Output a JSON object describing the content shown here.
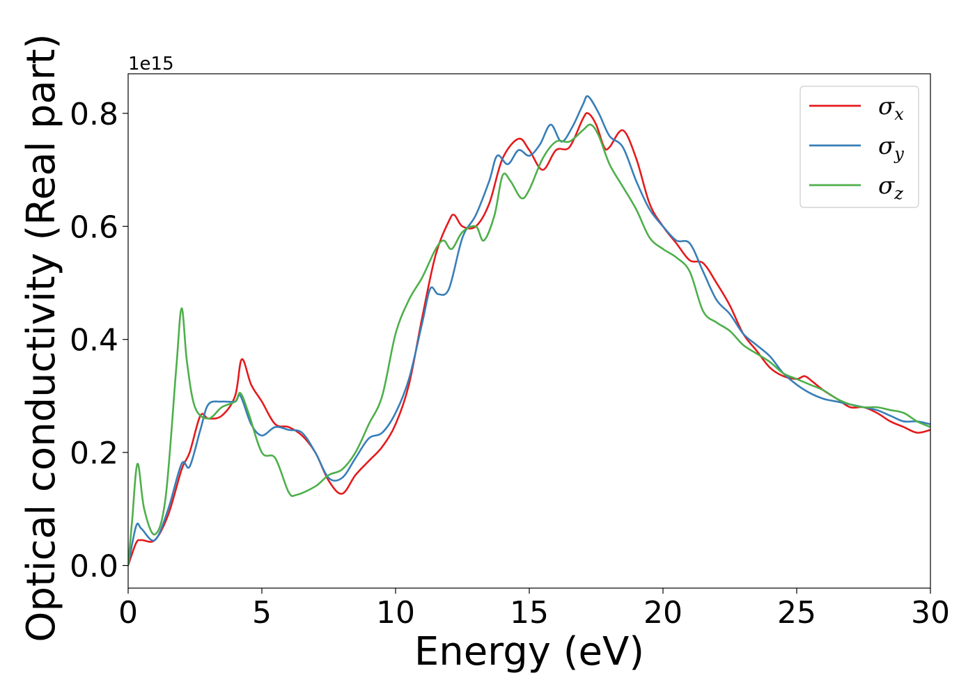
{
  "chart_data": {
    "type": "line",
    "title": "",
    "xlabel": "Energy (eV)",
    "ylabel": "Optical conductivity (Real part)",
    "y_offset_label": "1e15",
    "xlim": [
      0,
      30
    ],
    "ylim": [
      -0.04,
      0.87
    ],
    "xticks": [
      0,
      5,
      10,
      15,
      20,
      25,
      30
    ],
    "xtick_labels": [
      "0",
      "5",
      "10",
      "15",
      "20",
      "25",
      "30"
    ],
    "yticks": [
      0.0,
      0.2,
      0.4,
      0.6,
      0.8
    ],
    "ytick_labels": [
      "0.0",
      "0.2",
      "0.4",
      "0.6",
      "0.8"
    ],
    "grid": false,
    "legend_position": "top-right",
    "legend": [
      {
        "symbol": "σ",
        "subscript": "x",
        "color": "#e41a1c"
      },
      {
        "symbol": "σ",
        "subscript": "y",
        "color": "#377eb8"
      },
      {
        "symbol": "σ",
        "subscript": "z",
        "color": "#4daf4a"
      }
    ],
    "series": [
      {
        "name": "σx",
        "color": "#e41a1c",
        "x": [
          0,
          0.3,
          0.5,
          1,
          1.5,
          2,
          2.3,
          2.7,
          3,
          3.5,
          4,
          4.25,
          4.6,
          5,
          5.5,
          6,
          6.5,
          7,
          7.5,
          8,
          8.5,
          9,
          9.5,
          10,
          10.5,
          11,
          11.5,
          12,
          12.2,
          12.5,
          13,
          13.5,
          14,
          14.6,
          15,
          15.5,
          16,
          16.5,
          17,
          17.2,
          17.5,
          17.8,
          18,
          18.5,
          19,
          19.5,
          20,
          20.5,
          21,
          21.5,
          22,
          22.5,
          23,
          23.5,
          24,
          24.5,
          25,
          25.3,
          25.6,
          26,
          26.5,
          27,
          27.5,
          28,
          28.5,
          29,
          29.5,
          30
        ],
        "y": [
          0,
          0.04,
          0.045,
          0.045,
          0.09,
          0.17,
          0.2,
          0.265,
          0.26,
          0.265,
          0.3,
          0.365,
          0.32,
          0.29,
          0.25,
          0.245,
          0.23,
          0.2,
          0.15,
          0.127,
          0.16,
          0.185,
          0.21,
          0.25,
          0.32,
          0.44,
          0.55,
          0.61,
          0.62,
          0.6,
          0.6,
          0.64,
          0.72,
          0.755,
          0.735,
          0.7,
          0.735,
          0.74,
          0.79,
          0.8,
          0.78,
          0.74,
          0.74,
          0.77,
          0.72,
          0.64,
          0.6,
          0.57,
          0.54,
          0.535,
          0.5,
          0.46,
          0.41,
          0.38,
          0.35,
          0.335,
          0.33,
          0.335,
          0.325,
          0.31,
          0.295,
          0.28,
          0.28,
          0.27,
          0.255,
          0.245,
          0.235,
          0.24
        ]
      },
      {
        "name": "σy",
        "color": "#377eb8",
        "x": [
          0,
          0.3,
          0.5,
          1,
          1.5,
          2,
          2.3,
          2.7,
          3,
          3.5,
          4,
          4.2,
          4.6,
          5,
          5.5,
          6,
          6.5,
          7,
          7.5,
          8,
          8.5,
          9,
          9.5,
          10,
          10.5,
          11,
          11.3,
          11.6,
          12,
          12.5,
          13,
          13.5,
          13.8,
          14.2,
          14.6,
          15,
          15.4,
          15.8,
          16.2,
          16.6,
          17,
          17.2,
          17.6,
          18,
          18.5,
          19,
          19.5,
          20,
          20.5,
          21,
          21.5,
          22,
          22.5,
          23,
          23.5,
          24,
          24.5,
          25,
          25.5,
          26,
          26.5,
          27,
          27.5,
          28,
          28.5,
          29,
          29.5,
          30
        ],
        "y": [
          0,
          0.07,
          0.065,
          0.045,
          0.1,
          0.18,
          0.175,
          0.24,
          0.285,
          0.29,
          0.29,
          0.3,
          0.25,
          0.23,
          0.245,
          0.24,
          0.235,
          0.2,
          0.155,
          0.155,
          0.19,
          0.225,
          0.235,
          0.27,
          0.33,
          0.43,
          0.49,
          0.48,
          0.49,
          0.58,
          0.62,
          0.68,
          0.725,
          0.71,
          0.735,
          0.725,
          0.745,
          0.78,
          0.75,
          0.775,
          0.815,
          0.83,
          0.8,
          0.76,
          0.74,
          0.68,
          0.63,
          0.6,
          0.575,
          0.57,
          0.52,
          0.47,
          0.445,
          0.41,
          0.39,
          0.37,
          0.34,
          0.32,
          0.305,
          0.295,
          0.29,
          0.285,
          0.28,
          0.275,
          0.265,
          0.255,
          0.255,
          0.25
        ]
      },
      {
        "name": "σz",
        "color": "#4daf4a",
        "x": [
          0,
          0.15,
          0.35,
          0.6,
          1,
          1.4,
          1.8,
          2,
          2.2,
          2.5,
          3,
          3.5,
          4,
          4.2,
          4.5,
          5,
          5.5,
          6,
          6.3,
          7,
          7.5,
          8,
          8.5,
          9,
          9.5,
          10,
          10.5,
          11,
          11.5,
          11.8,
          12.1,
          12.5,
          13,
          13.3,
          13.7,
          14,
          14.3,
          14.7,
          15,
          15.5,
          16,
          16.5,
          17,
          17.3,
          17.6,
          18,
          18.5,
          19,
          19.5,
          20,
          20.5,
          21,
          21.5,
          22,
          22.5,
          23,
          23.5,
          24,
          24.5,
          25,
          25.5,
          26,
          26.5,
          27,
          27.5,
          28,
          28.5,
          29,
          29.5,
          30
        ],
        "y": [
          0,
          0.08,
          0.18,
          0.1,
          0.055,
          0.12,
          0.35,
          0.455,
          0.36,
          0.28,
          0.26,
          0.28,
          0.29,
          0.305,
          0.27,
          0.2,
          0.19,
          0.13,
          0.125,
          0.14,
          0.16,
          0.17,
          0.2,
          0.25,
          0.3,
          0.41,
          0.47,
          0.51,
          0.56,
          0.575,
          0.56,
          0.59,
          0.6,
          0.575,
          0.62,
          0.69,
          0.68,
          0.65,
          0.665,
          0.72,
          0.75,
          0.75,
          0.77,
          0.78,
          0.76,
          0.71,
          0.67,
          0.63,
          0.58,
          0.56,
          0.545,
          0.52,
          0.45,
          0.43,
          0.415,
          0.39,
          0.375,
          0.36,
          0.34,
          0.33,
          0.32,
          0.31,
          0.295,
          0.285,
          0.28,
          0.28,
          0.275,
          0.27,
          0.255,
          0.245
        ]
      }
    ]
  }
}
